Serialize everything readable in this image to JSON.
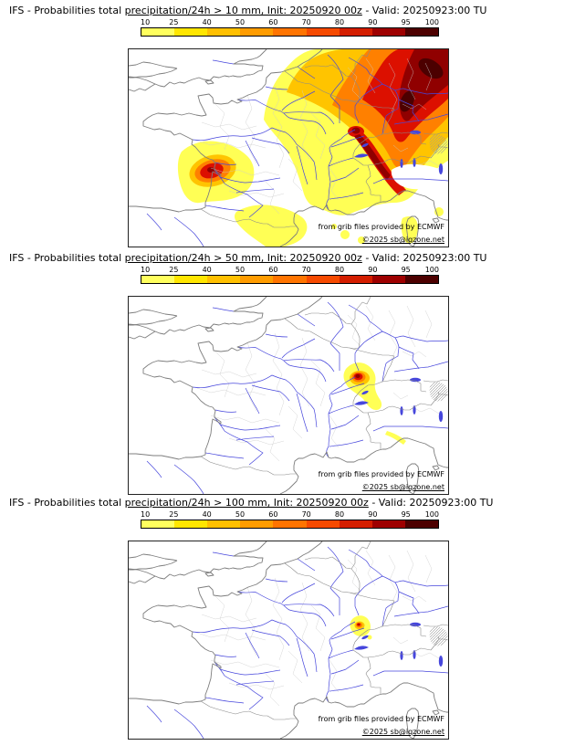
{
  "colorbar": {
    "ticks": [
      "10",
      "25",
      "40",
      "50",
      "60",
      "70",
      "80",
      "90",
      "95",
      "100"
    ],
    "colors": [
      "#ffff5e",
      "#ffe600",
      "#ffc000",
      "#ff9c00",
      "#ff7400",
      "#f64a00",
      "#d41e00",
      "#9e0000",
      "#4d0000"
    ]
  },
  "panels": [
    {
      "title_pre": "IFS - Probabilities total ",
      "title_link": "precipitation/24h > 10 mm, Init: 20250920 00z",
      "title_post": " - Valid: 20250923:00 TU",
      "credit": "from grib files provided by ECMWF",
      "copyright": "©2025 sb@iqzone.net"
    },
    {
      "title_pre": "IFS - Probabilities total ",
      "title_link": "precipitation/24h > 50 mm, Init: 20250920 00z",
      "title_post": " - Valid: 20250923:00 TU",
      "credit": "from grib files provided by ECMWF",
      "copyright": "©2025 sb@iqzone.net"
    },
    {
      "title_pre": "IFS - Probabilities total ",
      "title_link": "precipitation/24h > 100 mm, Init: 20250920 00z",
      "title_post": " - Valid: 20250923:00 TU",
      "credit": "from grib files provided by ECMWF",
      "copyright": "©2025 sb@iqzone.net"
    }
  ]
}
